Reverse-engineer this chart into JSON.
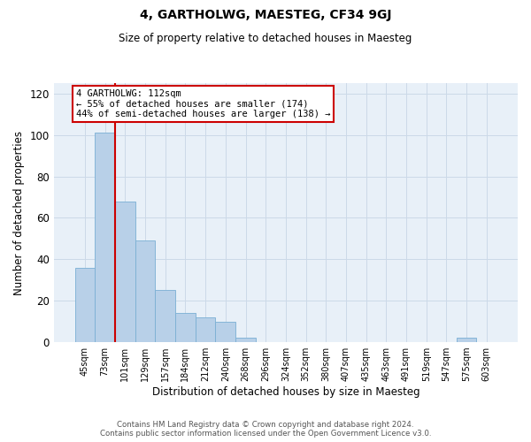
{
  "title": "4, GARTHOLWG, MAESTEG, CF34 9GJ",
  "subtitle": "Size of property relative to detached houses in Maesteg",
  "xlabel": "Distribution of detached houses by size in Maesteg",
  "ylabel": "Number of detached properties",
  "bar_color": "#b8d0e8",
  "bar_edge_color": "#7aafd4",
  "categories": [
    "45sqm",
    "73sqm",
    "101sqm",
    "129sqm",
    "157sqm",
    "184sqm",
    "212sqm",
    "240sqm",
    "268sqm",
    "296sqm",
    "324sqm",
    "352sqm",
    "380sqm",
    "407sqm",
    "435sqm",
    "463sqm",
    "491sqm",
    "519sqm",
    "547sqm",
    "575sqm",
    "603sqm"
  ],
  "values": [
    36,
    101,
    68,
    49,
    25,
    14,
    12,
    10,
    2,
    0,
    0,
    0,
    0,
    0,
    0,
    0,
    0,
    0,
    0,
    2,
    0
  ],
  "ylim": [
    0,
    125
  ],
  "yticks": [
    0,
    20,
    40,
    60,
    80,
    100,
    120
  ],
  "vline_x": 1.5,
  "vline_color": "#cc0000",
  "annotation_text_line1": "4 GARTHOLWG: 112sqm",
  "annotation_text_line2": "← 55% of detached houses are smaller (174)",
  "annotation_text_line3": "44% of semi-detached houses are larger (138) →",
  "annotation_box_color": "#cc0000",
  "footer_line1": "Contains HM Land Registry data © Crown copyright and database right 2024.",
  "footer_line2": "Contains public sector information licensed under the Open Government Licence v3.0.",
  "grid_color": "#ccd9e8",
  "background_color": "#e8f0f8"
}
